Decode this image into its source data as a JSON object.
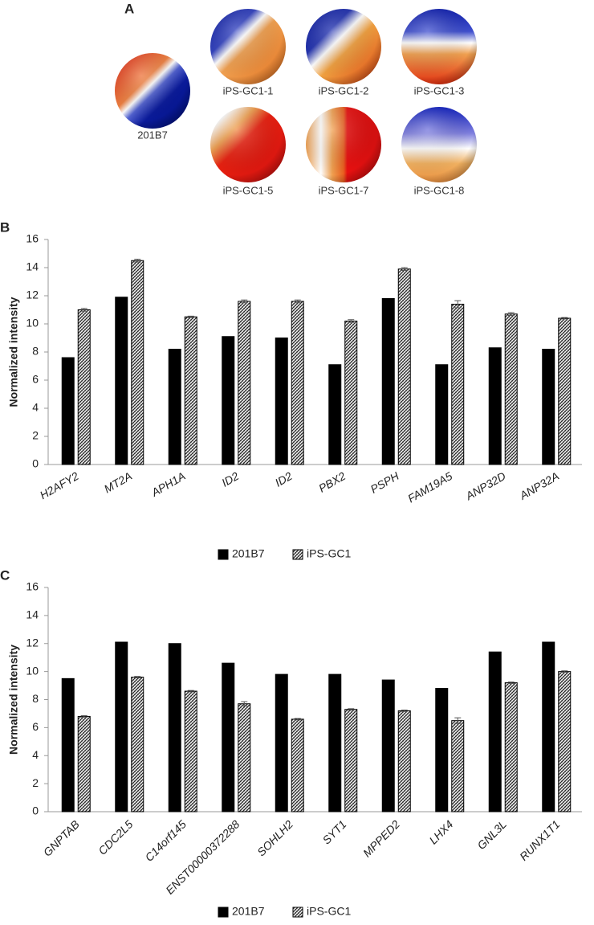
{
  "panel_a": {
    "label": "A",
    "spheres": [
      "201B7",
      "iPS-GC1-1",
      "iPS-GC1-2",
      "iPS-GC1-3",
      "iPS-GC1-5",
      "iPS-GC1-7",
      "iPS-GC1-8"
    ]
  },
  "chart_data": [
    {
      "type": "bar",
      "panel": "B",
      "y_label": "Normalized intensity",
      "categories": [
        "H2AFY2",
        "MT2A",
        "APH1A",
        "ID2",
        "ID2",
        "PBX2",
        "PSPH",
        "FAM19A5",
        "ANP32D",
        "ANP32A"
      ],
      "series": [
        {
          "name": "201B7",
          "color": "#000000",
          "values": [
            7.6,
            11.9,
            8.2,
            9.1,
            9.0,
            7.1,
            11.8,
            7.1,
            8.3,
            8.2
          ]
        },
        {
          "name": "iPS-GC1",
          "color": "#000000",
          "hatch": true,
          "values": [
            11.0,
            14.5,
            10.5,
            11.6,
            11.6,
            10.2,
            13.9,
            11.4,
            10.7,
            10.4
          ],
          "errors": [
            0.1,
            0.1,
            0.05,
            0.1,
            0.1,
            0.1,
            0.1,
            0.25,
            0.1,
            0.05
          ]
        }
      ],
      "ylim": [
        0,
        16
      ],
      "yticks": [
        0,
        2,
        4,
        6,
        8,
        10,
        12,
        14,
        16
      ],
      "legend": "bottom"
    },
    {
      "type": "bar",
      "panel": "C",
      "y_label": "Normalized intensity",
      "categories": [
        "GNPTAB",
        "CDC2L5",
        "C14orf145",
        "ENST00000372288",
        "SOHLH2",
        "SYT1",
        "MPPED2",
        "LHX4",
        "GNL3L",
        "RUNX1T1"
      ],
      "series": [
        {
          "name": "201B7",
          "color": "#000000",
          "values": [
            9.5,
            12.1,
            12.0,
            10.6,
            9.8,
            9.8,
            9.4,
            8.8,
            11.4,
            12.1
          ]
        },
        {
          "name": "iPS-GC1",
          "color": "#000000",
          "hatch": true,
          "values": [
            6.8,
            9.6,
            8.6,
            7.7,
            6.6,
            7.3,
            7.2,
            6.5,
            9.2,
            10.0
          ],
          "errors": [
            0.05,
            0.05,
            0.05,
            0.15,
            0.05,
            0.05,
            0.05,
            0.2,
            0.05,
            0.05
          ]
        }
      ],
      "ylim": [
        0,
        16
      ],
      "yticks": [
        0,
        2,
        4,
        6,
        8,
        10,
        12,
        14,
        16
      ],
      "legend": "bottom"
    }
  ]
}
